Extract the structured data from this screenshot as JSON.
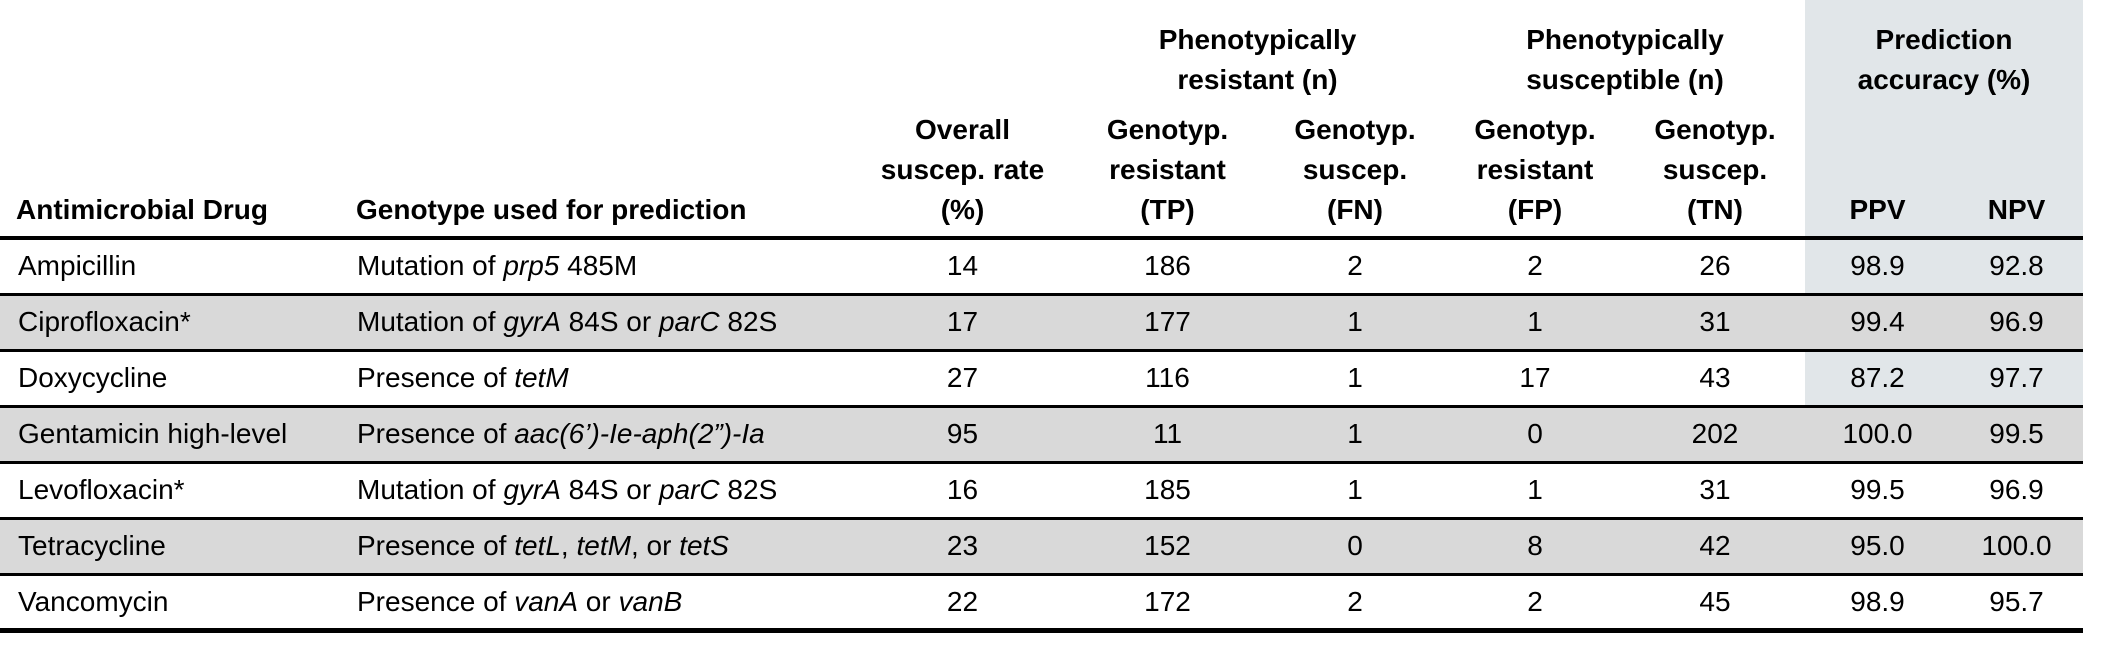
{
  "colors": {
    "stripe": "#d9d9d9",
    "accuracy_panel": "#e1e6e9"
  },
  "table": {
    "headers": {
      "drug": "Antimicrobial Drug",
      "genotype": "Genotype used for prediction",
      "overall": "Overall\nsuscep. rate\n(%)",
      "group_resistant": "Phenotypically\nresistant (n)",
      "group_susceptible": "Phenotypically\nsusceptible (n)",
      "group_accuracy": "Prediction\naccuracy (%)",
      "tp": "Genotyp.\nresistant\n(TP)",
      "fn": "Genotyp.\nsuscep.\n(FN)",
      "fp": "Genotyp.\nresistant\n(FP)",
      "tn": "Genotyp.\nsuscep.\n(TN)",
      "ppv": "PPV",
      "npv": "NPV"
    },
    "rows": [
      {
        "drug": "Ampicillin",
        "genotype": [
          {
            "t": "Mutation of ",
            "i": false
          },
          {
            "t": "prp5",
            "i": true
          },
          {
            "t": " 485M",
            "i": false
          }
        ],
        "overall": "14",
        "tp": "186",
        "fn": "2",
        "fp": "2",
        "tn": "26",
        "ppv": "98.9",
        "npv": "92.8"
      },
      {
        "drug": "Ciprofloxacin*",
        "genotype": [
          {
            "t": "Mutation of ",
            "i": false
          },
          {
            "t": "gyrA",
            "i": true
          },
          {
            "t": " 84S or ",
            "i": false
          },
          {
            "t": "parC",
            "i": true
          },
          {
            "t": " 82S",
            "i": false
          }
        ],
        "overall": "17",
        "tp": "177",
        "fn": "1",
        "fp": "1",
        "tn": "31",
        "ppv": "99.4",
        "npv": "96.9"
      },
      {
        "drug": "Doxycycline",
        "genotype": [
          {
            "t": "Presence of ",
            "i": false
          },
          {
            "t": "tetM",
            "i": true
          }
        ],
        "overall": "27",
        "tp": "116",
        "fn": "1",
        "fp": "17",
        "tn": "43",
        "ppv": "87.2",
        "npv": "97.7"
      },
      {
        "drug": "Gentamicin high-level",
        "genotype": [
          {
            "t": "Presence of ",
            "i": false
          },
          {
            "t": "aac(6’)-Ie-aph(2”)-Ia",
            "i": true
          }
        ],
        "overall": "95",
        "tp": "11",
        "fn": "1",
        "fp": "0",
        "tn": "202",
        "ppv": "100.0",
        "npv": "99.5"
      },
      {
        "drug": "Levofloxacin*",
        "genotype": [
          {
            "t": "Mutation of ",
            "i": false
          },
          {
            "t": "gyrA",
            "i": true
          },
          {
            "t": " 84S or ",
            "i": false
          },
          {
            "t": "parC",
            "i": true
          },
          {
            "t": " 82S",
            "i": false
          }
        ],
        "overall": "16",
        "tp": "185",
        "fn": "1",
        "fp": "1",
        "tn": "31",
        "ppv": "99.5",
        "npv": "96.9"
      },
      {
        "drug": "Tetracycline",
        "genotype": [
          {
            "t": "Presence of ",
            "i": false
          },
          {
            "t": "tetL",
            "i": true
          },
          {
            "t": ", ",
            "i": false
          },
          {
            "t": "tetM",
            "i": true
          },
          {
            "t": ", or ",
            "i": false
          },
          {
            "t": "tetS",
            "i": true
          }
        ],
        "overall": "23",
        "tp": "152",
        "fn": "0",
        "fp": "8",
        "tn": "42",
        "ppv": "95.0",
        "npv": "100.0"
      },
      {
        "drug": "Vancomycin",
        "genotype": [
          {
            "t": "Presence of ",
            "i": false
          },
          {
            "t": "vanA",
            "i": true
          },
          {
            "t": " or ",
            "i": false
          },
          {
            "t": "vanB",
            "i": true
          }
        ],
        "overall": "22",
        "tp": "172",
        "fn": "2",
        "fp": "2",
        "tn": "45",
        "ppv": "98.9",
        "npv": "95.7"
      }
    ]
  }
}
